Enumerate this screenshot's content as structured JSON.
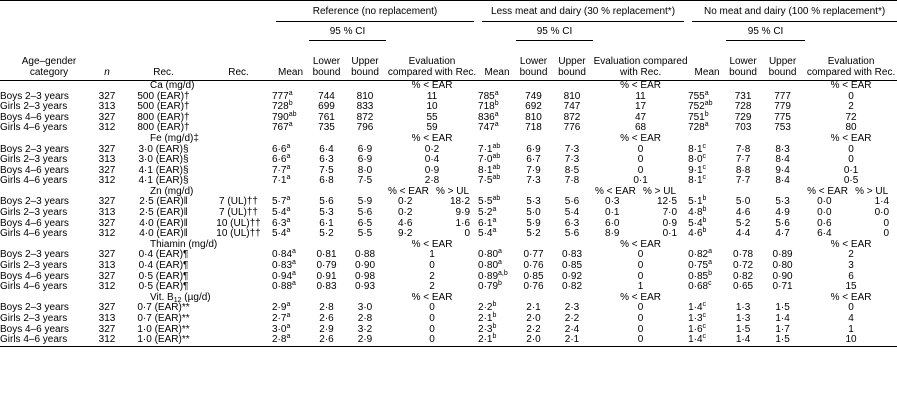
{
  "header": {
    "group_reference": "Reference (no replacement)",
    "group_less": "Less meat and dairy (30 % replacement*)",
    "group_no": "No meat and dairy (100 % replacement*)",
    "ci": "95 % CI",
    "col_category": "Age–gender category",
    "col_n": "n",
    "col_rec1": "Rec.",
    "col_rec2": "Rec.",
    "col_mean": "Mean",
    "col_lower": "Lower bound",
    "col_upper": "Upper bound",
    "col_eval": "Evaluation compared with Rec."
  },
  "sections": [
    {
      "nutrient": "Ca (mg/d)",
      "nutrient_sub": "",
      "eval_ref": "% < EAR",
      "eval_less": "% < EAR",
      "eval_no": "% < EAR",
      "rows": [
        {
          "cat": "Boys 2–3 years",
          "n": "327",
          "rec1": "500 (EAR)†",
          "rec2": "",
          "m1": "777",
          "s1": "a",
          "l1": "744",
          "u1": "810",
          "e1": "11",
          "e1b": "",
          "m2": "785",
          "s2": "a",
          "l2": "749",
          "u2": "810",
          "e2": "11",
          "e2b": "",
          "m3": "755",
          "s3": "a",
          "l3": "731",
          "u3": "777",
          "e3": "0",
          "e3b": ""
        },
        {
          "cat": "Girls 2–3 years",
          "n": "313",
          "rec1": "500 (EAR)†",
          "rec2": "",
          "m1": "728",
          "s1": "b",
          "l1": "699",
          "u1": "833",
          "e1": "10",
          "e1b": "",
          "m2": "718",
          "s2": "b",
          "l2": "692",
          "u2": "747",
          "e2": "17",
          "e2b": "",
          "m3": "752",
          "s3": "ab",
          "l3": "728",
          "u3": "779",
          "e3": "2",
          "e3b": ""
        },
        {
          "cat": "Boys 4–6 years",
          "n": "327",
          "rec1": "800 (EAR)†",
          "rec2": "",
          "m1": "790",
          "s1": "ab",
          "l1": "761",
          "u1": "872",
          "e1": "55",
          "e1b": "",
          "m2": "836",
          "s2": "a",
          "l2": "810",
          "u2": "872",
          "e2": "47",
          "e2b": "",
          "m3": "751",
          "s3": "b",
          "l3": "729",
          "u3": "775",
          "e3": "72",
          "e3b": ""
        },
        {
          "cat": "Girls 4–6 years",
          "n": "312",
          "rec1": "800 (EAR)†",
          "rec2": "",
          "m1": "767",
          "s1": "a",
          "l1": "735",
          "u1": "796",
          "e1": "59",
          "e1b": "",
          "m2": "747",
          "s2": "a",
          "l2": "718",
          "u2": "776",
          "e2": "68",
          "e2b": "",
          "m3": "728",
          "s3": "a",
          "l3": "703",
          "u3": "753",
          "e3": "80",
          "e3b": ""
        }
      ]
    },
    {
      "nutrient": "Fe (mg/d)‡",
      "nutrient_sub": "",
      "eval_ref": "% < EAR",
      "eval_less": "% < EAR",
      "eval_no": "% < EAR",
      "rows": [
        {
          "cat": "Boys 2–3 years",
          "n": "327",
          "rec1": "3·0 (EAR)§",
          "rec2": "",
          "m1": "6·6",
          "s1": "a",
          "l1": "6·4",
          "u1": "6·9",
          "e1": "0·2",
          "e1b": "",
          "m2": "7·1",
          "s2": "ab",
          "l2": "6·9",
          "u2": "7·3",
          "e2": "0",
          "e2b": "",
          "m3": "8·1",
          "s3": "c",
          "l3": "7·8",
          "u3": "8·3",
          "e3": "0",
          "e3b": ""
        },
        {
          "cat": "Girls 2–3 years",
          "n": "313",
          "rec1": "3·0 (EAR)§",
          "rec2": "",
          "m1": "6·6",
          "s1": "a",
          "l1": "6·3",
          "u1": "6·9",
          "e1": "0·4",
          "e1b": "",
          "m2": "7·0",
          "s2": "ab",
          "l2": "6·7",
          "u2": "7·3",
          "e2": "0",
          "e2b": "",
          "m3": "8·0",
          "s3": "c",
          "l3": "7·7",
          "u3": "8·4",
          "e3": "0",
          "e3b": ""
        },
        {
          "cat": "Boys 4–6 years",
          "n": "327",
          "rec1": "4·1 (EAR)§",
          "rec2": "",
          "m1": "7·7",
          "s1": "a",
          "l1": "7·5",
          "u1": "8·0",
          "e1": "0·9",
          "e1b": "",
          "m2": "8·1",
          "s2": "ab",
          "l2": "7·9",
          "u2": "8·5",
          "e2": "0",
          "e2b": "",
          "m3": "9·1",
          "s3": "c",
          "l3": "8·8",
          "u3": "9·4",
          "e3": "0·1",
          "e3b": ""
        },
        {
          "cat": "Girls 4–6 years",
          "n": "312",
          "rec1": "4·1 (EAR)§",
          "rec2": "",
          "m1": "7·1",
          "s1": "a",
          "l1": "6·8",
          "u1": "7·5",
          "e1": "2·8",
          "e1b": "",
          "m2": "7·5",
          "s2": "ab",
          "l2": "7·3",
          "u2": "7·8",
          "e2": "0·1",
          "e2b": "",
          "m3": "8·1",
          "s3": "c",
          "l3": "7·7",
          "u3": "8·4",
          "e3": "0·5",
          "e3b": ""
        }
      ]
    },
    {
      "nutrient": "Zn (mg/d)",
      "nutrient_sub": "",
      "eval_ref": "% < EAR",
      "eval_ref_b": "% > UL",
      "eval_less": "% < EAR",
      "eval_less_b": "% > UL",
      "eval_no": "% < EAR",
      "eval_no_b": "% > UL",
      "rows": [
        {
          "cat": "Boys 2–3 years",
          "n": "327",
          "rec1": "2·5 (EAR)‖",
          "rec2": "7 (UL)††",
          "m1": "5·7",
          "s1": "a",
          "l1": "5·6",
          "u1": "5·9",
          "e1": "0·2",
          "e1b": "18·2",
          "m2": "5·5",
          "s2": "ab",
          "l2": "5·3",
          "u2": "5·6",
          "e2": "0·3",
          "e2b": "12·5",
          "m3": "5·1",
          "s3": "b",
          "l3": "5·0",
          "u3": "5·3",
          "e3": "0·0",
          "e3b": "1·4"
        },
        {
          "cat": "Girls 2–3 years",
          "n": "313",
          "rec1": "2·5 (EAR)‖",
          "rec2": "7 (UL)††",
          "m1": "5·4",
          "s1": "a",
          "l1": "5·3",
          "u1": "5·6",
          "e1": "0·2",
          "e1b": "9·9",
          "m2": "5·2",
          "s2": "a",
          "l2": "5·0",
          "u2": "5·4",
          "e2": "0·1",
          "e2b": "7·0",
          "m3": "4·8",
          "s3": "b",
          "l3": "4·6",
          "u3": "4·9",
          "e3": "0·0",
          "e3b": "0·0"
        },
        {
          "cat": "Boys 4–6 years",
          "n": "327",
          "rec1": "4·0 (EAR)‖",
          "rec2": "10 (UL)††",
          "m1": "6·3",
          "s1": "a",
          "l1": "6·1",
          "u1": "6·5",
          "e1": "4·6",
          "e1b": "1·6",
          "m2": "6·1",
          "s2": "a",
          "l2": "5·9",
          "u2": "6·3",
          "e2": "6·0",
          "e2b": "0·9",
          "m3": "5·4",
          "s3": "b",
          "l3": "5·2",
          "u3": "5·6",
          "e3": "0·6",
          "e3b": "0"
        },
        {
          "cat": "Girls 4–6 years",
          "n": "312",
          "rec1": "4·0 (EAR)‖",
          "rec2": "10 (UL)††",
          "m1": "5·4",
          "s1": "a",
          "l1": "5·2",
          "u1": "5·5",
          "e1": "9·2",
          "e1b": "0",
          "m2": "5·4",
          "s2": "a",
          "l2": "5·2",
          "u2": "5·6",
          "e2": "8·9",
          "e2b": "0·1",
          "m3": "4·6",
          "s3": "b",
          "l3": "4·4",
          "u3": "4·7",
          "e3": "6·4",
          "e3b": "0"
        }
      ]
    },
    {
      "nutrient": "Thiamin (mg/d)",
      "nutrient_sub": "",
      "eval_ref": "% < EAR",
      "eval_less": "% < EAR",
      "eval_no": "% < EAR",
      "rows": [
        {
          "cat": "Boys 2–3 years",
          "n": "327",
          "rec1": "0·4 (EAR)¶",
          "rec2": "",
          "m1": "0·84",
          "s1": "a",
          "l1": "0·81",
          "u1": "0·88",
          "e1": "1",
          "e1b": "",
          "m2": "0·80",
          "s2": "a",
          "l2": "0·77",
          "u2": "0·83",
          "e2": "0",
          "e2b": "",
          "m3": "0·82",
          "s3": "a",
          "l3": "0·78",
          "u3": "0·89",
          "e3": "2",
          "e3b": ""
        },
        {
          "cat": "Girls 2–3 years",
          "n": "313",
          "rec1": "0·4 (EAR)¶",
          "rec2": "",
          "m1": "0·83",
          "s1": "a",
          "l1": "0·79",
          "u1": "0·90",
          "e1": "0",
          "e1b": "",
          "m2": "0·80",
          "s2": "a",
          "l2": "0·76",
          "u2": "0·85",
          "e2": "0",
          "e2b": "",
          "m3": "0·75",
          "s3": "a",
          "l3": "0·72",
          "u3": "0·80",
          "e3": "3",
          "e3b": ""
        },
        {
          "cat": "Boys 4–6 years",
          "n": "327",
          "rec1": "0·5 (EAR)¶",
          "rec2": "",
          "m1": "0·94",
          "s1": "a",
          "l1": "0·91",
          "u1": "0·98",
          "e1": "2",
          "e1b": "",
          "m2": "0·89",
          "s2": "a,b",
          "l2": "0·85",
          "u2": "0·92",
          "e2": "0",
          "e2b": "",
          "m3": "0·85",
          "s3": "b",
          "l3": "0·82",
          "u3": "0·90",
          "e3": "6",
          "e3b": ""
        },
        {
          "cat": "Girls 4–6 years",
          "n": "312",
          "rec1": "0·5 (EAR)¶",
          "rec2": "",
          "m1": "0·88",
          "s1": "a",
          "l1": "0·83",
          "u1": "0·93",
          "e1": "2",
          "e1b": "",
          "m2": "0·79",
          "s2": "b",
          "l2": "0·76",
          "u2": "0·82",
          "e2": "1",
          "e2b": "",
          "m3": "0·68",
          "s3": "c",
          "l3": "0·65",
          "u3": "0·71",
          "e3": "15",
          "e3b": ""
        }
      ]
    },
    {
      "nutrient": "Vit. B",
      "nutrient_sub": "12",
      "nutrient_unit": " (µg/d)",
      "eval_ref": "% < EAR",
      "eval_less": "% < EAR",
      "eval_no": "% < EAR",
      "rows": [
        {
          "cat": "Boys 2–3 years",
          "n": "327",
          "rec1": "0·7 (EAR)**",
          "rec2": "",
          "m1": "2·9",
          "s1": "a",
          "l1": "2·8",
          "u1": "3·0",
          "e1": "0",
          "e1b": "",
          "m2": "2·2",
          "s2": "b",
          "l2": "2·1",
          "u2": "2·3",
          "e2": "0",
          "e2b": "",
          "m3": "1·4",
          "s3": "c",
          "l3": "1·3",
          "u3": "1·5",
          "e3": "0",
          "e3b": ""
        },
        {
          "cat": "Girls 2–3 years",
          "n": "313",
          "rec1": "0·7 (EAR)**",
          "rec2": "",
          "m1": "2·7",
          "s1": "a",
          "l1": "2·6",
          "u1": "2·8",
          "e1": "0",
          "e1b": "",
          "m2": "2·1",
          "s2": "b",
          "l2": "2·0",
          "u2": "2·2",
          "e2": "0",
          "e2b": "",
          "m3": "1·3",
          "s3": "c",
          "l3": "1·3",
          "u3": "1·4",
          "e3": "4",
          "e3b": ""
        },
        {
          "cat": "Boys 4–6 years",
          "n": "327",
          "rec1": "1·0 (EAR)**",
          "rec2": "",
          "m1": "3·0",
          "s1": "a",
          "l1": "2·9",
          "u1": "3·2",
          "e1": "0",
          "e1b": "",
          "m2": "2·3",
          "s2": "b",
          "l2": "2·2",
          "u2": "2·4",
          "e2": "0",
          "e2b": "",
          "m3": "1·6",
          "s3": "c",
          "l3": "1·5",
          "u3": "1·7",
          "e3": "1",
          "e3b": ""
        },
        {
          "cat": "Girls 4–6 years",
          "n": "312",
          "rec1": "1·0 (EAR)**",
          "rec2": "",
          "m1": "2·8",
          "s1": "a",
          "l1": "2·6",
          "u1": "2·9",
          "e1": "0",
          "e1b": "",
          "m2": "2·1",
          "s2": "b",
          "l2": "2·0",
          "u2": "2·1",
          "e2": "0",
          "e2b": "",
          "m3": "1·4",
          "s3": "c",
          "l3": "1·4",
          "u3": "1·5",
          "e3": "10",
          "e3b": ""
        }
      ]
    }
  ]
}
